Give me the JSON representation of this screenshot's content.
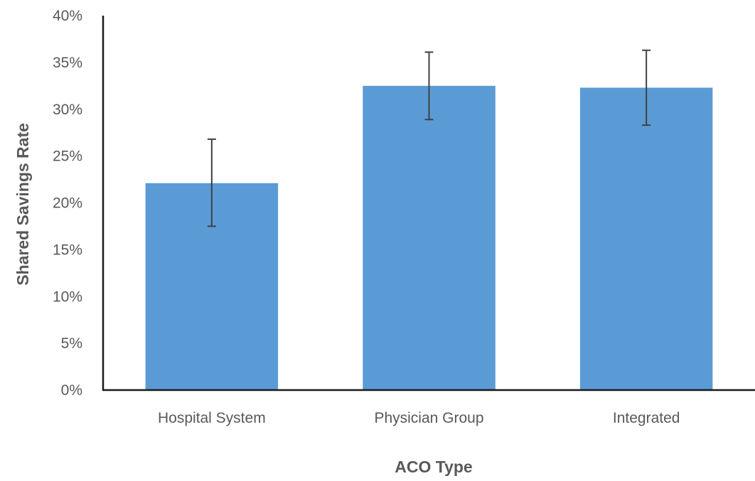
{
  "chart_data": {
    "type": "bar",
    "title": "",
    "xlabel": "ACO Type",
    "ylabel": "Shared Savings Rate",
    "categories": [
      "Hospital System",
      "Physician Group",
      "Integrated"
    ],
    "values": [
      22.1,
      32.5,
      32.3
    ],
    "error_bars": {
      "lower": [
        17.5,
        28.9,
        28.3
      ],
      "upper": [
        26.8,
        36.1,
        36.3
      ]
    },
    "ylim": [
      0,
      40
    ],
    "yticks": [
      0,
      5,
      10,
      15,
      20,
      25,
      30,
      35,
      40
    ],
    "ytick_format": "percent",
    "grid": false,
    "legend": "none",
    "bar_color": "#5b9bd5",
    "error_bar_color": "#404040",
    "axis_color": "#1a1a1a",
    "text_color": "#595959"
  }
}
